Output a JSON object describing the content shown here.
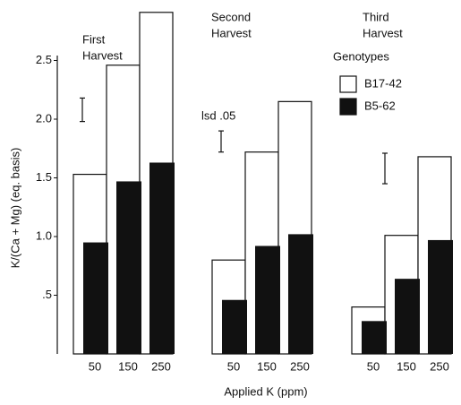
{
  "chart_data": {
    "type": "bar",
    "y_label": "K/(Ca + Mg) (eq. basis)",
    "x_label": "Applied K (ppm)",
    "group_labels": [
      [
        "First",
        "Harvest"
      ],
      [
        "Second",
        "Harvest"
      ],
      [
        "Third",
        "Harvest"
      ]
    ],
    "categories": [
      "50",
      "150",
      "250",
      "50",
      "150",
      "250",
      "50",
      "150",
      "250"
    ],
    "legend_title": "Genotypes",
    "series": [
      {
        "name": "B17-42",
        "color": "#ffffff",
        "values": [
          1.53,
          2.46,
          2.91,
          0.8,
          1.72,
          2.15,
          0.4,
          1.01,
          1.68
        ]
      },
      {
        "name": "B5-62",
        "color": "#111111",
        "values": [
          0.95,
          1.47,
          1.63,
          0.46,
          0.92,
          1.02,
          0.28,
          0.64,
          0.97
        ]
      }
    ],
    "lsd_label": "lsd .05",
    "lsd": [
      {
        "value": 2.08,
        "error": 0.1
      },
      {
        "value": 1.81,
        "error": 0.09
      },
      {
        "value": 1.58,
        "error": 0.13
      }
    ],
    "ylim": [
      0,
      3.0
    ],
    "yticks": [
      {
        "value": 0.5,
        "label": ".5"
      },
      {
        "value": 1,
        "label": "1.0"
      },
      1.5,
      {
        "value": 2,
        "label": "2.0"
      },
      2.5
    ]
  }
}
